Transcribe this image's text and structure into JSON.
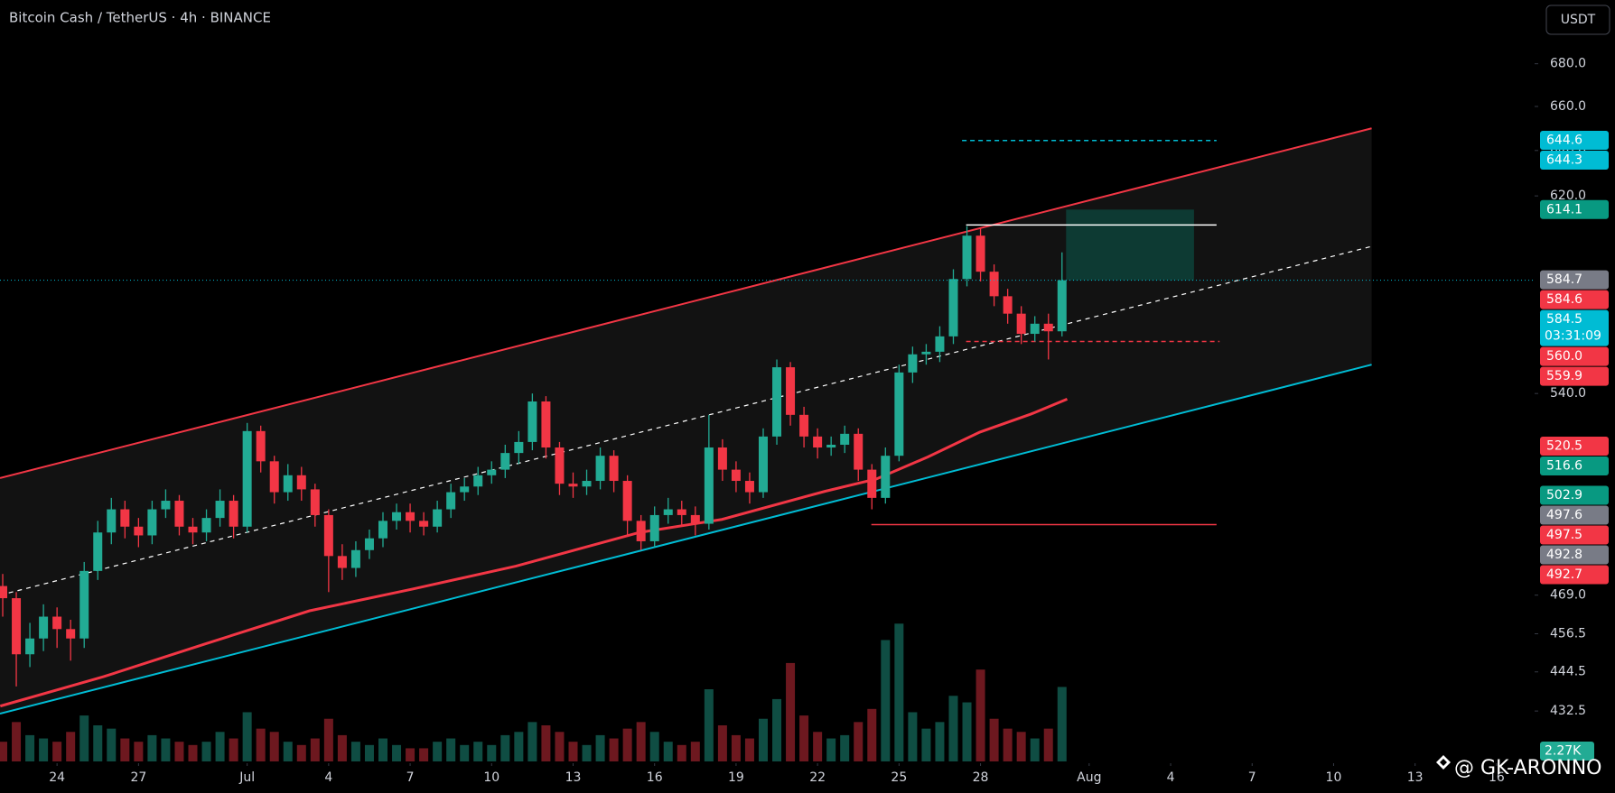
{
  "chart_data": {
    "type": "candlestick",
    "title": "Bitcoin Cash / TetherUS · 4h · BINANCE",
    "currency": "USDT",
    "watermark": "@ GK-ARONNO",
    "log_scale": true,
    "xlim": [
      -2.1,
      54.4
    ],
    "ylim": [
      417,
      711
    ],
    "xticks": [
      {
        "value": 0,
        "label": "24"
      },
      {
        "value": 3,
        "label": "27"
      },
      {
        "value": 7,
        "label": "Jul"
      },
      {
        "value": 10,
        "label": "4"
      },
      {
        "value": 13,
        "label": "7"
      },
      {
        "value": 16,
        "label": "10"
      },
      {
        "value": 19,
        "label": "13"
      },
      {
        "value": 22,
        "label": "16"
      },
      {
        "value": 25,
        "label": "19"
      },
      {
        "value": 28,
        "label": "22"
      },
      {
        "value": 31,
        "label": "25"
      },
      {
        "value": 34,
        "label": "28"
      },
      {
        "value": 38,
        "label": "Aug"
      },
      {
        "value": 41,
        "label": "4"
      },
      {
        "value": 44,
        "label": "7"
      },
      {
        "value": 47,
        "label": "10"
      },
      {
        "value": 50,
        "label": "13"
      },
      {
        "value": 53,
        "label": "16"
      }
    ],
    "yticks": [
      {
        "value": 680,
        "label": "680.0"
      },
      {
        "value": 660,
        "label": "660.0"
      },
      {
        "value": 640,
        "label": "640.0"
      },
      {
        "value": 620,
        "label": "620.0"
      },
      {
        "value": 540,
        "label": "540.0"
      },
      {
        "value": 469,
        "label": "469.0"
      },
      {
        "value": 456.5,
        "label": "456.5"
      },
      {
        "value": 444.5,
        "label": "444.5"
      },
      {
        "value": 432.5,
        "label": "432.5"
      }
    ],
    "up_color": "#22ab94",
    "down_color": "#f23645",
    "x": [
      -2,
      -1.5,
      -1,
      -0.5,
      0,
      0.5,
      1,
      1.5,
      2,
      2.5,
      3,
      3.5,
      4,
      4.5,
      5,
      5.5,
      6,
      6.5,
      7,
      7.5,
      8,
      8.5,
      9,
      9.5,
      10,
      10.5,
      11,
      11.5,
      12,
      12.5,
      13,
      13.5,
      14,
      14.5,
      15,
      15.5,
      16,
      16.5,
      17,
      17.5,
      18,
      18.5,
      19,
      19.5,
      20,
      20.5,
      21,
      21.5,
      22,
      22.5,
      23,
      23.5,
      24,
      24.5,
      25,
      25.5,
      26,
      26.5,
      27,
      27.5,
      28,
      28.5,
      29,
      29.5,
      30,
      30.5,
      31,
      31.5,
      32,
      32.5,
      33,
      33.5,
      34,
      34.5,
      35,
      35.5,
      36,
      36.5,
      37
    ],
    "open": [
      472,
      468,
      450,
      455,
      462,
      458,
      455,
      477,
      490,
      498,
      492,
      489,
      498,
      501,
      492,
      490,
      495,
      501,
      492,
      526,
      515,
      504,
      510,
      505,
      496,
      482,
      478,
      484,
      488,
      494,
      497,
      494,
      492,
      498,
      504,
      506,
      510,
      512,
      518,
      522,
      537,
      520,
      507,
      506,
      508,
      517,
      508,
      494,
      487,
      496,
      498,
      496,
      493,
      520,
      512,
      508,
      504,
      524,
      550,
      532,
      524,
      520,
      521,
      525,
      512,
      502,
      517,
      548,
      555,
      556,
      562,
      585,
      603,
      588,
      578,
      571,
      563,
      567,
      564
    ],
    "high": [
      476,
      470,
      460,
      466,
      465,
      461,
      480,
      494,
      502,
      501,
      495,
      501,
      505,
      503,
      495,
      498,
      505,
      503,
      529,
      528,
      517,
      514,
      513,
      507,
      498,
      486,
      487,
      491,
      497,
      500,
      500,
      497,
      501,
      507,
      509,
      513,
      515,
      521,
      526,
      540,
      539,
      522,
      511,
      512,
      520,
      519,
      510,
      496,
      499,
      502,
      501,
      499,
      532,
      523,
      515,
      511,
      527,
      553,
      552,
      535,
      527,
      524,
      528,
      527,
      514,
      520,
      551,
      558,
      559,
      566,
      589,
      607,
      606,
      591,
      581,
      574,
      570,
      571,
      596
    ],
    "low": [
      462,
      440,
      446,
      451,
      452,
      448,
      452,
      474,
      486,
      488,
      485,
      486,
      495,
      489,
      486,
      487,
      492,
      488,
      490,
      511,
      500,
      501,
      501,
      492,
      470,
      474,
      475,
      481,
      485,
      491,
      490,
      489,
      490,
      495,
      501,
      503,
      507,
      509,
      514,
      519,
      516,
      503,
      502,
      503,
      505,
      504,
      489,
      484,
      485,
      493,
      492,
      489,
      491,
      508,
      504,
      500,
      502,
      521,
      528,
      520,
      516,
      517,
      518,
      508,
      498,
      500,
      515,
      544,
      551,
      552,
      559,
      582,
      584,
      574,
      567,
      559,
      560,
      553,
      562
    ],
    "close": [
      468,
      450,
      455,
      462,
      458,
      455,
      477,
      490,
      498,
      492,
      489,
      498,
      501,
      492,
      490,
      495,
      501,
      492,
      526,
      515,
      504,
      510,
      505,
      496,
      482,
      478,
      484,
      488,
      494,
      497,
      494,
      492,
      498,
      504,
      506,
      510,
      512,
      518,
      522,
      537,
      520,
      507,
      506,
      508,
      517,
      508,
      494,
      487,
      496,
      498,
      496,
      493,
      520,
      512,
      508,
      504,
      524,
      550,
      532,
      524,
      520,
      521,
      525,
      512,
      502,
      517,
      548,
      555,
      556,
      562,
      585,
      603,
      588,
      578,
      571,
      563,
      567,
      564,
      584.5
    ],
    "volume": [
      0.6,
      1.2,
      0.8,
      0.7,
      0.6,
      0.9,
      1.4,
      1.1,
      1.0,
      0.7,
      0.6,
      0.8,
      0.7,
      0.6,
      0.5,
      0.6,
      0.9,
      0.7,
      1.5,
      1.0,
      0.9,
      0.6,
      0.5,
      0.7,
      1.3,
      0.8,
      0.6,
      0.5,
      0.7,
      0.5,
      0.4,
      0.4,
      0.6,
      0.7,
      0.5,
      0.6,
      0.5,
      0.8,
      0.9,
      1.2,
      1.1,
      0.9,
      0.6,
      0.5,
      0.8,
      0.7,
      1.0,
      1.2,
      0.9,
      0.6,
      0.5,
      0.6,
      2.2,
      1.1,
      0.8,
      0.7,
      1.3,
      1.9,
      3.0,
      1.4,
      0.9,
      0.7,
      0.8,
      1.2,
      1.6,
      3.7,
      4.2,
      1.5,
      1.0,
      1.2,
      2.0,
      1.8,
      2.8,
      1.3,
      1.0,
      0.9,
      0.7,
      1.0,
      2.27
    ],
    "volume_lim": [
      0,
      4.4
    ],
    "volume_tag": {
      "value": 2.27,
      "label": "2.27K",
      "color": "#22ab94"
    },
    "channel_fill": "#121212",
    "trendlines": [
      {
        "color": "#f23645",
        "dash": false,
        "x": [
          -2.1,
          48.4
        ],
        "y": [
          509,
          650
        ]
      },
      {
        "color": "#00bcd4",
        "dash": false,
        "x": [
          -2.1,
          48.4
        ],
        "y": [
          431.7,
          551
        ]
      },
      {
        "color": "#ffffff",
        "dash": true,
        "x": [
          -2.1,
          48.4
        ],
        "y": [
          469,
          598.5
        ]
      }
    ],
    "moving_average": {
      "color": "#f23645",
      "x": [
        -2.09,
        1.71,
        5.5,
        9.3,
        13.09,
        16.89,
        21.44,
        24.48,
        28.27,
        30.17,
        32.07,
        33.97,
        35.86,
        37.19
      ],
      "values": [
        434,
        443,
        453.4,
        463.9,
        471,
        478.6,
        490,
        494.5,
        504.3,
        508.7,
        516.6,
        525.6,
        532.3,
        537.9
      ]
    },
    "levels": [
      {
        "color": "#ffffff",
        "dash": false,
        "x": [
          33.47,
          42.69
        ],
        "value": 607.5
      },
      {
        "color": "#f23645",
        "dash": false,
        "x": [
          29.98,
          42.69
        ],
        "value": 492.7
      },
      {
        "color": "#f23645",
        "dash": true,
        "x": [
          33.47,
          42.8
        ],
        "value": 560
      },
      {
        "color": "#00bcd4",
        "dash": true,
        "x": [
          33.32,
          42.69
        ],
        "value": 644.5
      }
    ],
    "target_box": {
      "color": "#0d3a33",
      "x": [
        37.15,
        41.86
      ],
      "y": [
        614.1,
        584.5
      ]
    },
    "price_tags": [
      {
        "value": 644.6,
        "label": "644.6",
        "color": "#00bcd4"
      },
      {
        "value": 644.3,
        "label": "644.3",
        "color": "#00bcd4"
      },
      {
        "value": 614.1,
        "label": "614.1",
        "color": "#089981"
      },
      {
        "value": 584.7,
        "label": "584.7",
        "color": "#787b86"
      },
      {
        "value": 584.6,
        "label": "584.6",
        "color": "#f23645"
      },
      {
        "value": 584.5,
        "label": "584.5",
        "color": "#00bcd4",
        "countdown": "03:31:09"
      },
      {
        "value": 560,
        "label": "560.0",
        "color": "#f23645"
      },
      {
        "value": 559.9,
        "label": "559.9",
        "color": "#f23645"
      },
      {
        "value": 520.5,
        "label": "520.5",
        "color": "#f23645"
      },
      {
        "value": 516.6,
        "label": "516.6",
        "color": "#089981"
      },
      {
        "value": 502.9,
        "label": "502.9",
        "color": "#089981"
      },
      {
        "value": 497.6,
        "label": "497.6",
        "color": "#787b86"
      },
      {
        "value": 497.5,
        "label": "497.5",
        "color": "#f23645"
      },
      {
        "value": 492.8,
        "label": "492.8",
        "color": "#787b86"
      },
      {
        "value": 492.7,
        "label": "492.7",
        "color": "#f23645"
      }
    ]
  }
}
